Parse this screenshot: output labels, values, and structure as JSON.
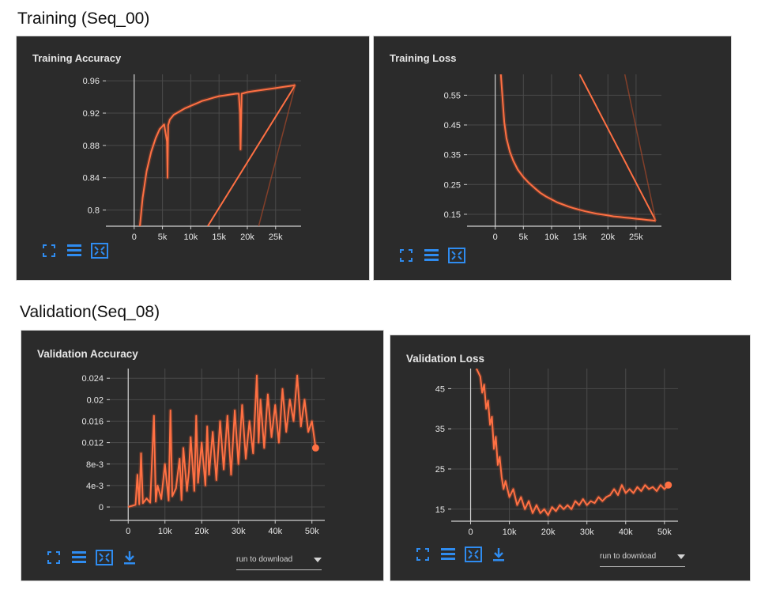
{
  "sections": {
    "training": "Training (Seq_00)",
    "validation": "Validation(Seq_08)"
  },
  "colors": {
    "panel_bg": "#2b2b2b",
    "line": "#ff7043",
    "line_faint": "#a8492b",
    "grid": "#4a4a4a",
    "axis": "#d0d0d0",
    "text": "#e6e6e6",
    "icon": "#2f8cf0"
  },
  "toolbar": {
    "icons": [
      "fit-to-data-icon",
      "toggle-legend-icon",
      "expand-chart-icon",
      "download-icon"
    ],
    "run_select_label": "run to download"
  },
  "chart_data": [
    {
      "type": "line",
      "title": "Training Accuracy",
      "xlim": [
        -5000,
        29500
      ],
      "ylim": [
        0.78,
        0.968
      ],
      "xticks": [
        0,
        5000,
        10000,
        15000,
        20000,
        25000
      ],
      "xtick_labels": [
        "0",
        "5k",
        "10k",
        "15k",
        "20k",
        "25k"
      ],
      "yticks": [
        0.8,
        0.84,
        0.88,
        0.92,
        0.96
      ],
      "ytick_labels": [
        "0.8",
        "0.84",
        "0.88",
        "0.92",
        "0.96"
      ],
      "grid": true,
      "series": [
        {
          "points": [
            [
              1000,
              0.78
            ],
            [
              1500,
              0.815
            ],
            [
              2200,
              0.848
            ],
            [
              3000,
              0.872
            ],
            [
              3800,
              0.889
            ],
            [
              4500,
              0.9
            ],
            [
              5300,
              0.906
            ],
            [
              5800,
              0.885
            ],
            [
              5900,
              0.84
            ],
            [
              6000,
              0.905
            ],
            [
              6300,
              0.912
            ],
            [
              7000,
              0.918
            ],
            [
              8000,
              0.922
            ],
            [
              9000,
              0.926
            ],
            [
              10000,
              0.929
            ],
            [
              11000,
              0.932
            ],
            [
              12000,
              0.935
            ],
            [
              13000,
              0.937
            ],
            [
              14000,
              0.939
            ],
            [
              15000,
              0.941
            ],
            [
              16000,
              0.942
            ],
            [
              17000,
              0.943
            ],
            [
              18000,
              0.944
            ],
            [
              18500,
              0.944
            ],
            [
              18700,
              0.92
            ],
            [
              18800,
              0.875
            ],
            [
              19000,
              0.944
            ],
            [
              20000,
              0.946
            ],
            [
              21000,
              0.947
            ],
            [
              22000,
              0.948
            ],
            [
              23000,
              0.949
            ],
            [
              24000,
              0.95
            ],
            [
              25000,
              0.951
            ],
            [
              26000,
              0.952
            ],
            [
              27000,
              0.953
            ],
            [
              28000,
              0.954
            ],
            [
              28500,
              0.955
            ]
          ],
          "wrap_line": [
            [
              28500,
              0.955
            ],
            [
              13000,
              0.78
            ]
          ],
          "faint_line": [
            [
              28500,
              0.955
            ],
            [
              22000,
              0.78
            ]
          ]
        }
      ]
    },
    {
      "type": "line",
      "title": "Training Loss",
      "xlim": [
        -5000,
        29500
      ],
      "ylim": [
        0.11,
        0.62
      ],
      "xticks": [
        0,
        5000,
        10000,
        15000,
        20000,
        25000
      ],
      "xtick_labels": [
        "0",
        "5k",
        "10k",
        "15k",
        "20k",
        "25k"
      ],
      "yticks": [
        0.15,
        0.25,
        0.35,
        0.45,
        0.55
      ],
      "ytick_labels": [
        "0.15",
        "0.25",
        "0.35",
        "0.45",
        "0.55"
      ],
      "grid": true,
      "series": [
        {
          "points": [
            [
              1000,
              0.62
            ],
            [
              1300,
              0.54
            ],
            [
              1600,
              0.46
            ],
            [
              2000,
              0.405
            ],
            [
              2600,
              0.36
            ],
            [
              3200,
              0.33
            ],
            [
              4000,
              0.3
            ],
            [
              5000,
              0.275
            ],
            [
              6000,
              0.255
            ],
            [
              7000,
              0.238
            ],
            [
              8000,
              0.222
            ],
            [
              9000,
              0.21
            ],
            [
              10000,
              0.2
            ],
            [
              11000,
              0.19
            ],
            [
              12000,
              0.183
            ],
            [
              13000,
              0.176
            ],
            [
              14000,
              0.17
            ],
            [
              15000,
              0.165
            ],
            [
              16000,
              0.16
            ],
            [
              17000,
              0.156
            ],
            [
              18000,
              0.152
            ],
            [
              19000,
              0.149
            ],
            [
              20000,
              0.146
            ],
            [
              21000,
              0.143
            ],
            [
              22000,
              0.141
            ],
            [
              23000,
              0.139
            ],
            [
              24000,
              0.137
            ],
            [
              25000,
              0.135
            ],
            [
              26000,
              0.133
            ],
            [
              27000,
              0.131
            ],
            [
              28000,
              0.129
            ],
            [
              28500,
              0.128
            ]
          ],
          "wrap_line": [
            [
              28500,
              0.128
            ],
            [
              15000,
              0.62
            ]
          ],
          "faint_line": [
            [
              28500,
              0.128
            ],
            [
              23000,
              0.62
            ]
          ]
        }
      ]
    },
    {
      "type": "line",
      "title": "Validation Accuracy",
      "xlim": [
        -5000,
        53500
      ],
      "ylim": [
        -0.0025,
        0.0258
      ],
      "xticks": [
        0,
        10000,
        20000,
        30000,
        40000,
        50000
      ],
      "xtick_labels": [
        "0",
        "10k",
        "20k",
        "30k",
        "40k",
        "50k"
      ],
      "yticks": [
        0,
        0.004,
        0.008,
        0.012,
        0.016,
        0.02,
        0.024
      ],
      "ytick_labels": [
        "0",
        "4e-3",
        "8e-3",
        "0.012",
        "0.016",
        "0.02",
        "0.024"
      ],
      "grid": true,
      "series": [
        {
          "points": [
            [
              0,
              0
            ],
            [
              1000,
              0.0002
            ],
            [
              2000,
              0.0004
            ],
            [
              2500,
              0.006
            ],
            [
              3000,
              0.0005
            ],
            [
              3500,
              0.01
            ],
            [
              4000,
              0.0007
            ],
            [
              5000,
              0.0016
            ],
            [
              6000,
              0.0008
            ],
            [
              7000,
              0.017
            ],
            [
              7500,
              0.001
            ],
            [
              8000,
              0.004
            ],
            [
              9000,
              0.0015
            ],
            [
              10000,
              0.008
            ],
            [
              11000,
              0.0012
            ],
            [
              11500,
              0.018
            ],
            [
              12000,
              0.002
            ],
            [
              13000,
              0.0035
            ],
            [
              14000,
              0.009
            ],
            [
              14500,
              0.0013
            ],
            [
              15000,
              0.011
            ],
            [
              16000,
              0.003
            ],
            [
              16500,
              0.0065
            ],
            [
              17000,
              0.013
            ],
            [
              18000,
              0.003
            ],
            [
              18500,
              0.017
            ],
            [
              19000,
              0.0045
            ],
            [
              20000,
              0.012
            ],
            [
              21000,
              0.004
            ],
            [
              21500,
              0.015
            ],
            [
              22000,
              0.006
            ],
            [
              23000,
              0.014
            ],
            [
              24000,
              0.005
            ],
            [
              25000,
              0.016
            ],
            [
              26000,
              0.007
            ],
            [
              27000,
              0.017
            ],
            [
              28000,
              0.006
            ],
            [
              29000,
              0.018
            ],
            [
              30000,
              0.008
            ],
            [
              31000,
              0.019
            ],
            [
              32000,
              0.009
            ],
            [
              33000,
              0.016
            ],
            [
              34000,
              0.01
            ],
            [
              35000,
              0.0245
            ],
            [
              35500,
              0.012
            ],
            [
              36000,
              0.02
            ],
            [
              37000,
              0.011
            ],
            [
              38000,
              0.021
            ],
            [
              39000,
              0.013
            ],
            [
              40000,
              0.019
            ],
            [
              41000,
              0.012
            ],
            [
              42000,
              0.022
            ],
            [
              43000,
              0.014
            ],
            [
              44000,
              0.02
            ],
            [
              45000,
              0.016
            ],
            [
              46000,
              0.0245
            ],
            [
              47000,
              0.015
            ],
            [
              48000,
              0.02
            ],
            [
              49000,
              0.014
            ],
            [
              50000,
              0.016
            ],
            [
              51000,
              0.011
            ]
          ],
          "end_marker": [
            51000,
            0.011
          ],
          "wrap_line": [],
          "faint_line": []
        }
      ]
    },
    {
      "type": "line",
      "title": "Validation Loss",
      "xlim": [
        -5000,
        53500
      ],
      "ylim": [
        12,
        50
      ],
      "xticks": [
        0,
        10000,
        20000,
        30000,
        40000,
        50000
      ],
      "xtick_labels": [
        "0",
        "10k",
        "20k",
        "30k",
        "40k",
        "50k"
      ],
      "yticks": [
        15,
        25,
        35,
        45
      ],
      "ytick_labels": [
        "15",
        "25",
        "35",
        "45"
      ],
      "grid": true,
      "series": [
        {
          "points": [
            [
              1500,
              50
            ],
            [
              2500,
              48
            ],
            [
              3000,
              44
            ],
            [
              3500,
              46
            ],
            [
              4000,
              40
            ],
            [
              4500,
              42
            ],
            [
              5000,
              36
            ],
            [
              5500,
              38
            ],
            [
              6000,
              30
            ],
            [
              6500,
              33
            ],
            [
              7000,
              26
            ],
            [
              7500,
              28
            ],
            [
              8000,
              23
            ],
            [
              8500,
              20
            ],
            [
              9000,
              22
            ],
            [
              10000,
              18
            ],
            [
              11000,
              20
            ],
            [
              12000,
              16
            ],
            [
              13000,
              18
            ],
            [
              14000,
              15
            ],
            [
              15000,
              17
            ],
            [
              16000,
              14
            ],
            [
              17000,
              16
            ],
            [
              18000,
              14
            ],
            [
              19000,
              15
            ],
            [
              20000,
              13.5
            ],
            [
              21000,
              15.5
            ],
            [
              22000,
              14.5
            ],
            [
              23000,
              16
            ],
            [
              24000,
              15
            ],
            [
              25000,
              16
            ],
            [
              26000,
              15
            ],
            [
              27000,
              17
            ],
            [
              28000,
              16
            ],
            [
              29000,
              17.5
            ],
            [
              30000,
              16
            ],
            [
              31000,
              17
            ],
            [
              32000,
              16.5
            ],
            [
              33000,
              18
            ],
            [
              34000,
              17
            ],
            [
              35000,
              18
            ],
            [
              36000,
              18.5
            ],
            [
              37000,
              20
            ],
            [
              38000,
              18.5
            ],
            [
              39000,
              21
            ],
            [
              40000,
              19
            ],
            [
              41000,
              20
            ],
            [
              42000,
              19
            ],
            [
              43000,
              20.5
            ],
            [
              44000,
              19.5
            ],
            [
              45000,
              21
            ],
            [
              46000,
              20
            ],
            [
              47000,
              20.5
            ],
            [
              48000,
              19.5
            ],
            [
              49000,
              21
            ],
            [
              50000,
              20
            ],
            [
              51000,
              21
            ]
          ],
          "end_marker": [
            51000,
            21
          ],
          "wrap_line": [],
          "faint_line": []
        }
      ]
    }
  ]
}
